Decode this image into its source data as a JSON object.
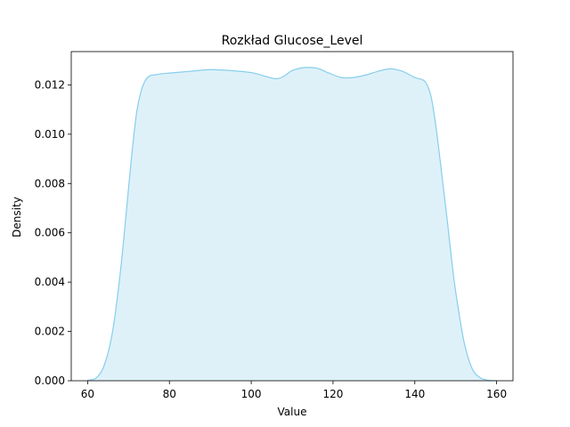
{
  "chart_data": {
    "type": "area",
    "title": "Rozkład Glucose_Level",
    "xlabel": "Value",
    "ylabel": "Density",
    "xlim": [
      56,
      164
    ],
    "ylim": [
      0,
      0.01335
    ],
    "xticks": [
      60,
      80,
      100,
      120,
      140,
      160
    ],
    "yticks": [
      0.0,
      0.002,
      0.004,
      0.006,
      0.008,
      0.01,
      0.012
    ],
    "ytick_labels": [
      "0.000",
      "0.002",
      "0.004",
      "0.006",
      "0.008",
      "0.010",
      "0.012"
    ],
    "grid": false,
    "colors": {
      "line": "#87ceeb",
      "fill": "#87ceeb",
      "fill_opacity": 0.28
    },
    "series": [
      {
        "x": [
          60,
          62,
          64,
          66,
          68,
          70,
          71,
          72,
          73,
          74,
          75,
          76,
          77,
          78,
          80,
          85,
          90,
          95,
          100,
          103,
          106,
          108,
          110,
          113,
          116,
          119,
          122,
          125,
          128,
          131,
          134,
          137,
          140,
          142,
          143,
          144,
          145,
          146,
          147,
          148,
          149,
          150,
          152,
          154,
          156,
          158,
          160
        ],
        "y": [
          2e-05,
          0.0001,
          0.0006,
          0.0019,
          0.0044,
          0.0078,
          0.0095,
          0.0109,
          0.0117,
          0.01215,
          0.01235,
          0.0124,
          0.01242,
          0.01245,
          0.01248,
          0.01255,
          0.01262,
          0.01258,
          0.0125,
          0.01237,
          0.01225,
          0.01235,
          0.01258,
          0.0127,
          0.01268,
          0.01248,
          0.0123,
          0.0123,
          0.0124,
          0.01255,
          0.01265,
          0.01255,
          0.0123,
          0.0122,
          0.012,
          0.0115,
          0.0105,
          0.0092,
          0.0078,
          0.0064,
          0.0049,
          0.0036,
          0.0016,
          0.0005,
          0.00012,
          2e-05,
          0.0
        ]
      }
    ]
  }
}
